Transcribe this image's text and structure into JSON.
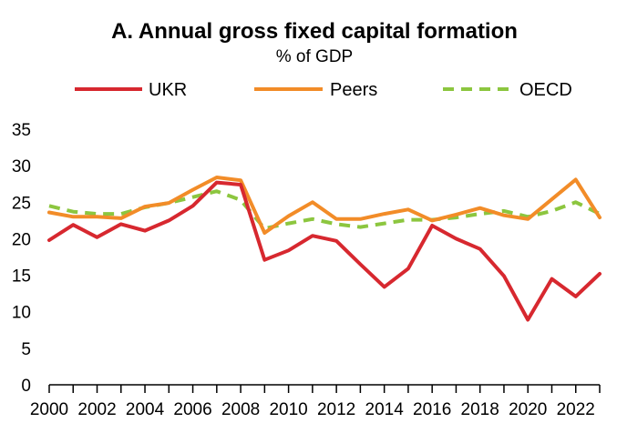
{
  "chart_data": {
    "type": "line",
    "title": "A. Annual gross fixed capital formation",
    "subtitle": "% of GDP",
    "xlabel": "",
    "ylabel": "",
    "x": [
      2000,
      2001,
      2002,
      2003,
      2004,
      2005,
      2006,
      2007,
      2008,
      2009,
      2010,
      2011,
      2012,
      2013,
      2014,
      2015,
      2016,
      2017,
      2018,
      2019,
      2020,
      2021,
      2022,
      2023
    ],
    "xticks": [
      "2000",
      "2002",
      "2004",
      "2006",
      "2008",
      "2010",
      "2012",
      "2014",
      "2016",
      "2018",
      "2020",
      "2022"
    ],
    "yticks": [
      "0",
      "5",
      "10",
      "15",
      "20",
      "25",
      "30",
      "35"
    ],
    "ylim": [
      0,
      35
    ],
    "grid": false,
    "legend_position": "top",
    "series": [
      {
        "name": "UKR",
        "color": "#d7282f",
        "style": "solid",
        "values": [
          19.8,
          21.9,
          20.2,
          22.0,
          21.1,
          22.5,
          24.5,
          27.7,
          27.4,
          17.1,
          18.4,
          20.4,
          19.7,
          16.5,
          13.4,
          15.9,
          21.8,
          20.0,
          18.6,
          14.9,
          8.9,
          14.5,
          12.1,
          15.2
        ]
      },
      {
        "name": "Peers",
        "color": "#f28c28",
        "style": "solid",
        "values": [
          23.6,
          23.0,
          23.0,
          22.8,
          24.4,
          24.9,
          26.7,
          28.4,
          28.0,
          20.8,
          23.1,
          25.0,
          22.7,
          22.7,
          23.4,
          24.0,
          22.5,
          23.3,
          24.2,
          23.2,
          22.7,
          25.4,
          28.1,
          22.9
        ]
      },
      {
        "name": "OECD",
        "color": "#8cc63f",
        "style": "dashed",
        "values": [
          24.5,
          23.7,
          23.4,
          23.4,
          24.3,
          24.9,
          25.7,
          26.5,
          25.3,
          21.4,
          22.1,
          22.7,
          22.0,
          21.6,
          22.1,
          22.6,
          22.6,
          22.9,
          23.4,
          23.8,
          23.0,
          23.8,
          25.0,
          23.4
        ]
      }
    ]
  }
}
